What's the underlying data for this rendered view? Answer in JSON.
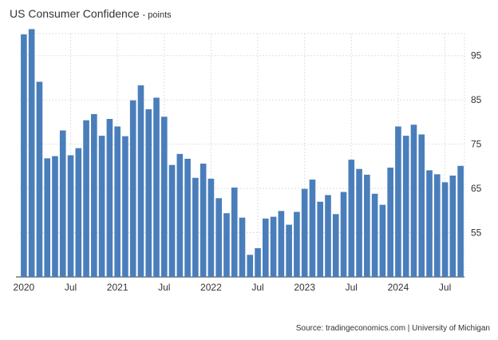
{
  "chart_data": {
    "type": "bar",
    "title": "US Consumer Confidence",
    "unit": "points",
    "source": "Source: tradingeconomics.com | University of Michigan",
    "bar_color": "#4a7ebb",
    "grid_color": "#e0e0e0",
    "ylim": [
      45,
      100
    ],
    "y_ticks": [
      55,
      65,
      75,
      85,
      95
    ],
    "x_tick_labels": [
      {
        "label": "2020",
        "index": 0
      },
      {
        "label": "Jul",
        "index": 6
      },
      {
        "label": "2021",
        "index": 12
      },
      {
        "label": "Jul",
        "index": 18
      },
      {
        "label": "2022",
        "index": 24
      },
      {
        "label": "Jul",
        "index": 30
      },
      {
        "label": "2023",
        "index": 36
      },
      {
        "label": "Jul",
        "index": 42
      },
      {
        "label": "2024",
        "index": 48
      },
      {
        "label": "Jul",
        "index": 54
      }
    ],
    "categories": [
      "2020-01",
      "2020-02",
      "2020-03",
      "2020-04",
      "2020-05",
      "2020-06",
      "2020-07",
      "2020-08",
      "2020-09",
      "2020-10",
      "2020-11",
      "2020-12",
      "2021-01",
      "2021-02",
      "2021-03",
      "2021-04",
      "2021-05",
      "2021-06",
      "2021-07",
      "2021-08",
      "2021-09",
      "2021-10",
      "2021-11",
      "2021-12",
      "2022-01",
      "2022-02",
      "2022-03",
      "2022-04",
      "2022-05",
      "2022-06",
      "2022-07",
      "2022-08",
      "2022-09",
      "2022-10",
      "2022-11",
      "2022-12",
      "2023-01",
      "2023-02",
      "2023-03",
      "2023-04",
      "2023-05",
      "2023-06",
      "2023-07",
      "2023-08",
      "2023-09",
      "2023-10",
      "2023-11",
      "2023-12",
      "2024-01",
      "2024-02",
      "2024-03",
      "2024-04",
      "2024-05",
      "2024-06",
      "2024-07",
      "2024-08",
      "2024-09"
    ],
    "values": [
      99.8,
      101.0,
      89.1,
      71.8,
      72.3,
      78.1,
      72.5,
      74.1,
      80.4,
      81.8,
      76.9,
      80.7,
      79.0,
      76.8,
      84.9,
      88.3,
      82.9,
      85.5,
      81.2,
      70.3,
      72.8,
      71.7,
      67.4,
      70.6,
      67.2,
      62.8,
      59.4,
      65.2,
      58.4,
      50.0,
      51.5,
      58.2,
      58.6,
      59.9,
      56.8,
      59.7,
      64.9,
      67.0,
      62.0,
      63.5,
      59.2,
      64.2,
      71.5,
      69.4,
      68.1,
      63.8,
      61.3,
      69.7,
      79.0,
      76.9,
      79.4,
      77.2,
      69.1,
      68.2,
      66.4,
      67.9,
      70.1
    ]
  }
}
